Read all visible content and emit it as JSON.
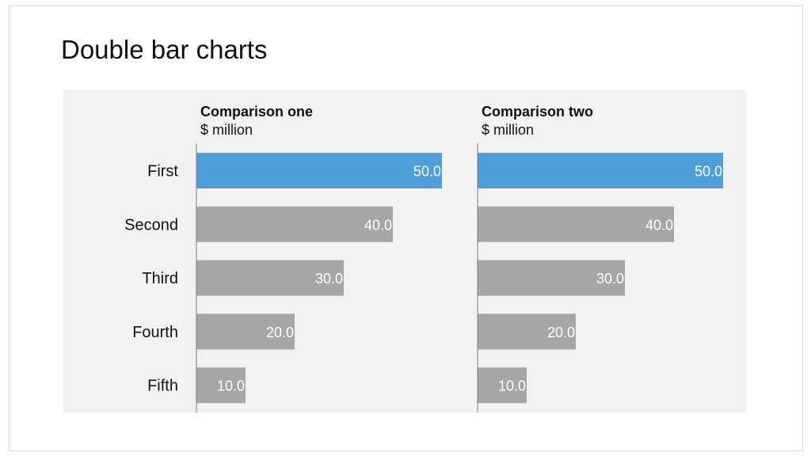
{
  "slide": {
    "title": "Double bar charts"
  },
  "colors": {
    "highlight": "#4e9fd9",
    "bar": "#a6a6a6",
    "axis": "#7f7f7f",
    "panel": "#f2f2f2"
  },
  "chart_data": [
    {
      "type": "bar",
      "orientation": "horizontal",
      "title": "Comparison one",
      "subtitle": "$ million",
      "categories": [
        "First",
        "Second",
        "Third",
        "Fourth",
        "Fifth"
      ],
      "values": [
        50.0,
        40.0,
        30.0,
        20.0,
        10.0
      ],
      "labels": [
        "50.0",
        "40.0",
        "30.0",
        "20.0",
        "10.0"
      ],
      "highlight_index": 0,
      "xlim": [
        0,
        50
      ],
      "grid": false
    },
    {
      "type": "bar",
      "orientation": "horizontal",
      "title": "Comparison two",
      "subtitle": "$ million",
      "categories": [
        "First",
        "Second",
        "Third",
        "Fourth",
        "Fifth"
      ],
      "values": [
        50.0,
        40.0,
        30.0,
        20.0,
        10.0
      ],
      "labels": [
        "50.0",
        "40.0",
        "30.0",
        "20.0",
        "10.0"
      ],
      "highlight_index": 0,
      "xlim": [
        0,
        50
      ],
      "grid": false
    }
  ]
}
